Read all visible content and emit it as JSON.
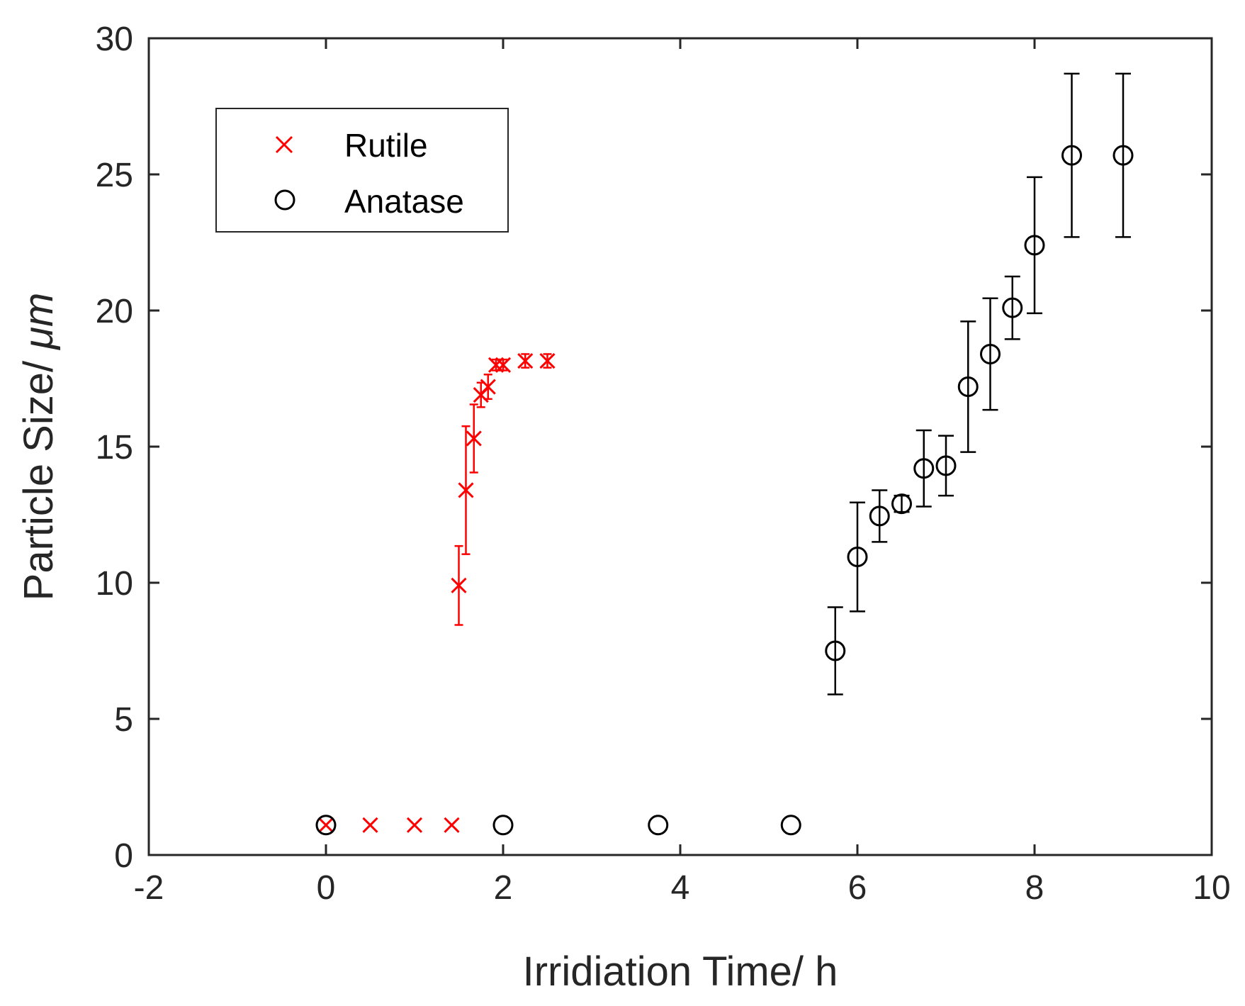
{
  "chart_data": {
    "type": "scatter",
    "title": "",
    "xlabel": "Irridiation Time/ h",
    "ylabel_text": "Particle Size/ ",
    "ylabel_unit": "μm",
    "xlim": [
      -2,
      10
    ],
    "ylim": [
      0,
      30
    ],
    "xticks": [
      -2,
      0,
      2,
      4,
      6,
      8,
      10
    ],
    "yticks": [
      0,
      5,
      10,
      15,
      20,
      25,
      30
    ],
    "xtick_labels": [
      "-2",
      "0",
      "2",
      "4",
      "6",
      "8",
      "10"
    ],
    "ytick_labels": [
      "0",
      "5",
      "10",
      "15",
      "20",
      "25",
      "30"
    ],
    "grid": false,
    "legend_position": "top-left",
    "series": [
      {
        "name": "Rutile",
        "marker": "x",
        "color": "#ff0000",
        "points": [
          {
            "x": 0,
            "y": 1.1,
            "err": 0
          },
          {
            "x": 0.5,
            "y": 1.1,
            "err": 0
          },
          {
            "x": 1.0,
            "y": 1.1,
            "err": 0
          },
          {
            "x": 1.42,
            "y": 1.1,
            "err": 0
          },
          {
            "x": 1.5,
            "y": 9.9,
            "err": 1.45
          },
          {
            "x": 1.58,
            "y": 13.4,
            "err": 2.35
          },
          {
            "x": 1.67,
            "y": 15.3,
            "err": 1.25
          },
          {
            "x": 1.75,
            "y": 16.9,
            "err": 0.45
          },
          {
            "x": 1.83,
            "y": 17.2,
            "err": 0.45
          },
          {
            "x": 1.92,
            "y": 18.0,
            "err": 0.2
          },
          {
            "x": 2.0,
            "y": 18.0,
            "err": 0.2
          },
          {
            "x": 2.25,
            "y": 18.15,
            "err": 0.25
          },
          {
            "x": 2.5,
            "y": 18.15,
            "err": 0.25
          }
        ]
      },
      {
        "name": "Anatase",
        "marker": "o",
        "color": "#000000",
        "points": [
          {
            "x": 0,
            "y": 1.1,
            "err": 0
          },
          {
            "x": 2.0,
            "y": 1.1,
            "err": 0
          },
          {
            "x": 3.75,
            "y": 1.1,
            "err": 0
          },
          {
            "x": 5.25,
            "y": 1.1,
            "err": 0
          },
          {
            "x": 5.75,
            "y": 7.5,
            "err": 1.6
          },
          {
            "x": 6.0,
            "y": 10.95,
            "err": 2.0
          },
          {
            "x": 6.25,
            "y": 12.45,
            "err": 0.95
          },
          {
            "x": 6.5,
            "y": 12.9,
            "err": 0.3
          },
          {
            "x": 6.75,
            "y": 14.2,
            "err": 1.4
          },
          {
            "x": 7.0,
            "y": 14.3,
            "err": 1.1
          },
          {
            "x": 7.25,
            "y": 17.2,
            "err": 2.4
          },
          {
            "x": 7.5,
            "y": 18.4,
            "err": 2.05
          },
          {
            "x": 7.75,
            "y": 20.1,
            "err": 1.15
          },
          {
            "x": 8.0,
            "y": 22.4,
            "err": 2.5
          },
          {
            "x": 8.42,
            "y": 25.7,
            "err": 3.0
          },
          {
            "x": 9.0,
            "y": 25.7,
            "err": 3.0
          }
        ]
      }
    ]
  }
}
